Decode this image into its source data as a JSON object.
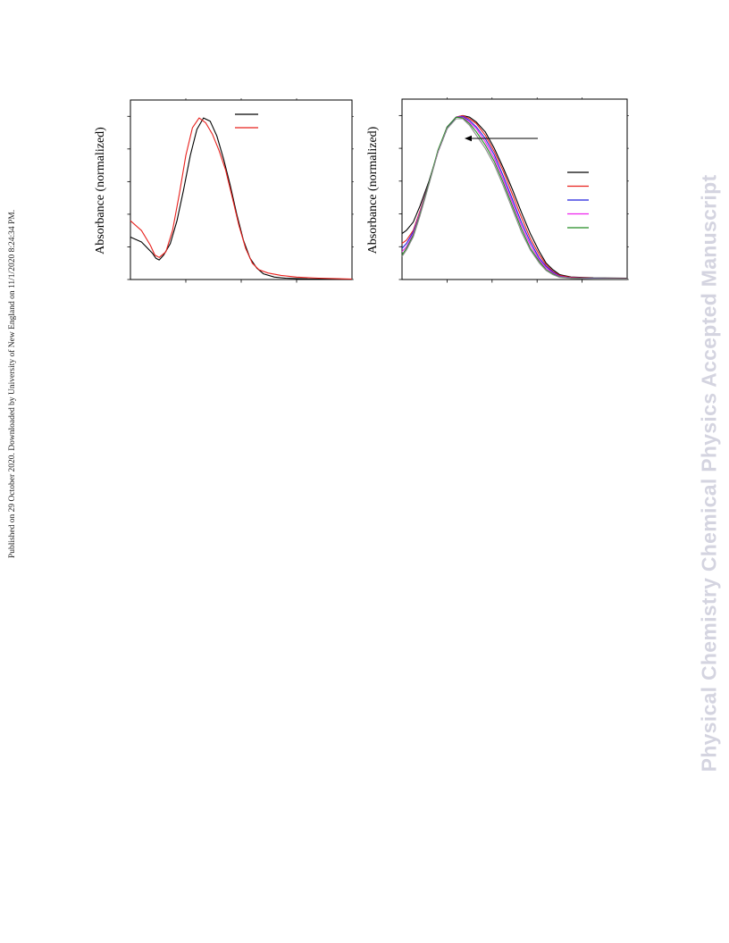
{
  "page": {
    "side_note": "Published on 29 October 2020. Downloaded by University of New England on 11/1/2020 8:24:34 PM.",
    "watermark": "Physical Chemistry Chemical Physics Accepted Manuscript"
  },
  "colors": {
    "black": "#000000",
    "red": "#e8201c",
    "blue": "#2222dd",
    "magenta": "#ee22ee",
    "green": "#228b22",
    "gray": "#8a8a8a"
  },
  "chart_data": [
    {
      "type": "line",
      "ylabel": "Absorbance (normalized)",
      "xlim": [
        0,
        1
      ],
      "ylim": [
        0,
        1.1
      ],
      "legend_position": "top-right",
      "series": [
        {
          "color": "black",
          "points": [
            [
              0.0,
              0.26
            ],
            [
              0.05,
              0.23
            ],
            [
              0.1,
              0.16
            ],
            [
              0.115,
              0.13
            ],
            [
              0.13,
              0.12
            ],
            [
              0.15,
              0.15
            ],
            [
              0.18,
              0.22
            ],
            [
              0.21,
              0.36
            ],
            [
              0.24,
              0.55
            ],
            [
              0.27,
              0.76
            ],
            [
              0.3,
              0.92
            ],
            [
              0.33,
              0.99
            ],
            [
              0.36,
              0.97
            ],
            [
              0.39,
              0.88
            ],
            [
              0.42,
              0.74
            ],
            [
              0.45,
              0.58
            ],
            [
              0.48,
              0.4
            ],
            [
              0.51,
              0.24
            ],
            [
              0.54,
              0.13
            ],
            [
              0.57,
              0.07
            ],
            [
              0.6,
              0.035
            ],
            [
              0.65,
              0.015
            ],
            [
              0.7,
              0.008
            ],
            [
              0.8,
              0.004
            ],
            [
              1.0,
              0.002
            ]
          ]
        },
        {
          "color": "red",
          "points": [
            [
              0.0,
              0.36
            ],
            [
              0.05,
              0.3
            ],
            [
              0.09,
              0.21
            ],
            [
              0.11,
              0.15
            ],
            [
              0.13,
              0.135
            ],
            [
              0.16,
              0.17
            ],
            [
              0.19,
              0.3
            ],
            [
              0.22,
              0.52
            ],
            [
              0.25,
              0.76
            ],
            [
              0.28,
              0.93
            ],
            [
              0.31,
              0.99
            ],
            [
              0.34,
              0.96
            ],
            [
              0.37,
              0.89
            ],
            [
              0.4,
              0.79
            ],
            [
              0.43,
              0.67
            ],
            [
              0.46,
              0.5
            ],
            [
              0.49,
              0.33
            ],
            [
              0.52,
              0.19
            ],
            [
              0.55,
              0.1
            ],
            [
              0.58,
              0.06
            ],
            [
              0.62,
              0.04
            ],
            [
              0.68,
              0.025
            ],
            [
              0.75,
              0.015
            ],
            [
              0.85,
              0.008
            ],
            [
              1.0,
              0.003
            ]
          ]
        }
      ],
      "legend": [
        {
          "color": "black"
        },
        {
          "color": "red"
        }
      ]
    },
    {
      "type": "line",
      "ylabel": "Absorbance (normalized)",
      "xlim": [
        0,
        1
      ],
      "ylim": [
        0,
        1.1
      ],
      "legend_position": "right",
      "annotation": {
        "type": "arrow",
        "direction": "left"
      },
      "series": [
        {
          "color": "black",
          "points": [
            [
              0.0,
              0.28
            ],
            [
              0.02,
              0.3
            ],
            [
              0.05,
              0.35
            ],
            [
              0.08,
              0.45
            ],
            [
              0.12,
              0.6
            ],
            [
              0.16,
              0.78
            ],
            [
              0.2,
              0.92
            ],
            [
              0.24,
              0.99
            ],
            [
              0.27,
              1.0
            ],
            [
              0.3,
              0.99
            ],
            [
              0.33,
              0.96
            ],
            [
              0.37,
              0.9
            ],
            [
              0.41,
              0.8
            ],
            [
              0.45,
              0.68
            ],
            [
              0.49,
              0.55
            ],
            [
              0.53,
              0.41
            ],
            [
              0.57,
              0.28
            ],
            [
              0.61,
              0.17
            ],
            [
              0.64,
              0.1
            ],
            [
              0.67,
              0.06
            ],
            [
              0.7,
              0.03
            ],
            [
              0.75,
              0.015
            ],
            [
              0.85,
              0.01
            ],
            [
              1.0,
              0.008
            ]
          ]
        },
        {
          "color": "red",
          "points": [
            [
              0.0,
              0.22
            ],
            [
              0.02,
              0.24
            ],
            [
              0.05,
              0.3
            ],
            [
              0.08,
              0.42
            ],
            [
              0.12,
              0.59
            ],
            [
              0.16,
              0.78
            ],
            [
              0.2,
              0.92
            ],
            [
              0.24,
              0.99
            ],
            [
              0.27,
              1.0
            ],
            [
              0.3,
              0.98
            ],
            [
              0.33,
              0.95
            ],
            [
              0.37,
              0.88
            ],
            [
              0.41,
              0.78
            ],
            [
              0.45,
              0.66
            ],
            [
              0.49,
              0.52
            ],
            [
              0.53,
              0.38
            ],
            [
              0.57,
              0.25
            ],
            [
              0.61,
              0.15
            ],
            [
              0.64,
              0.09
            ],
            [
              0.67,
              0.05
            ],
            [
              0.7,
              0.025
            ],
            [
              0.75,
              0.013
            ],
            [
              0.85,
              0.008
            ],
            [
              1.0,
              0.006
            ]
          ]
        },
        {
          "color": "blue",
          "points": [
            [
              0.0,
              0.19
            ],
            [
              0.02,
              0.22
            ],
            [
              0.05,
              0.29
            ],
            [
              0.08,
              0.41
            ],
            [
              0.12,
              0.59
            ],
            [
              0.16,
              0.78
            ],
            [
              0.2,
              0.92
            ],
            [
              0.24,
              0.99
            ],
            [
              0.27,
              0.995
            ],
            [
              0.3,
              0.97
            ],
            [
              0.33,
              0.93
            ],
            [
              0.37,
              0.86
            ],
            [
              0.41,
              0.76
            ],
            [
              0.45,
              0.63
            ],
            [
              0.49,
              0.49
            ],
            [
              0.53,
              0.35
            ],
            [
              0.57,
              0.23
            ],
            [
              0.61,
              0.13
            ],
            [
              0.64,
              0.08
            ],
            [
              0.67,
              0.045
            ],
            [
              0.7,
              0.02
            ],
            [
              0.75,
              0.01
            ],
            [
              0.85,
              0.007
            ],
            [
              1.0,
              0.005
            ]
          ]
        },
        {
          "color": "magenta",
          "points": [
            [
              0.0,
              0.17
            ],
            [
              0.02,
              0.2
            ],
            [
              0.05,
              0.28
            ],
            [
              0.08,
              0.41
            ],
            [
              0.12,
              0.59
            ],
            [
              0.16,
              0.78
            ],
            [
              0.2,
              0.93
            ],
            [
              0.24,
              0.99
            ],
            [
              0.27,
              0.99
            ],
            [
              0.3,
              0.96
            ],
            [
              0.33,
              0.92
            ],
            [
              0.37,
              0.84
            ],
            [
              0.41,
              0.74
            ],
            [
              0.45,
              0.61
            ],
            [
              0.49,
              0.47
            ],
            [
              0.53,
              0.33
            ],
            [
              0.57,
              0.21
            ],
            [
              0.61,
              0.12
            ],
            [
              0.64,
              0.07
            ],
            [
              0.67,
              0.04
            ],
            [
              0.7,
              0.018
            ],
            [
              0.75,
              0.009
            ],
            [
              0.85,
              0.006
            ],
            [
              1.0,
              0.004
            ]
          ]
        },
        {
          "color": "green",
          "points": [
            [
              0.0,
              0.15
            ],
            [
              0.02,
              0.19
            ],
            [
              0.05,
              0.27
            ],
            [
              0.08,
              0.4
            ],
            [
              0.12,
              0.59
            ],
            [
              0.16,
              0.79
            ],
            [
              0.2,
              0.93
            ],
            [
              0.24,
              0.99
            ],
            [
              0.27,
              0.985
            ],
            [
              0.3,
              0.95
            ],
            [
              0.33,
              0.9
            ],
            [
              0.37,
              0.82
            ],
            [
              0.41,
              0.72
            ],
            [
              0.45,
              0.59
            ],
            [
              0.49,
              0.45
            ],
            [
              0.53,
              0.31
            ],
            [
              0.57,
              0.19
            ],
            [
              0.61,
              0.11
            ],
            [
              0.64,
              0.06
            ],
            [
              0.67,
              0.035
            ],
            [
              0.7,
              0.015
            ],
            [
              0.75,
              0.008
            ],
            [
              0.85,
              0.005
            ],
            [
              1.0,
              0.004
            ]
          ]
        },
        {
          "color": "gray",
          "points": [
            [
              0.0,
              0.14
            ],
            [
              0.02,
              0.18
            ],
            [
              0.05,
              0.26
            ],
            [
              0.08,
              0.39
            ],
            [
              0.12,
              0.58
            ],
            [
              0.16,
              0.78
            ],
            [
              0.2,
              0.92
            ],
            [
              0.24,
              0.98
            ],
            [
              0.27,
              0.98
            ],
            [
              0.3,
              0.94
            ],
            [
              0.33,
              0.88
            ],
            [
              0.37,
              0.8
            ],
            [
              0.41,
              0.7
            ],
            [
              0.45,
              0.57
            ],
            [
              0.49,
              0.43
            ],
            [
              0.53,
              0.29
            ],
            [
              0.57,
              0.18
            ],
            [
              0.61,
              0.1
            ],
            [
              0.64,
              0.055
            ],
            [
              0.67,
              0.03
            ],
            [
              0.7,
              0.013
            ],
            [
              0.75,
              0.007
            ],
            [
              0.85,
              0.004
            ],
            [
              1.0,
              0.003
            ]
          ]
        }
      ],
      "legend": [
        {
          "color": "black"
        },
        {
          "color": "red"
        },
        {
          "color": "blue"
        },
        {
          "color": "magenta"
        },
        {
          "color": "green"
        }
      ]
    }
  ]
}
